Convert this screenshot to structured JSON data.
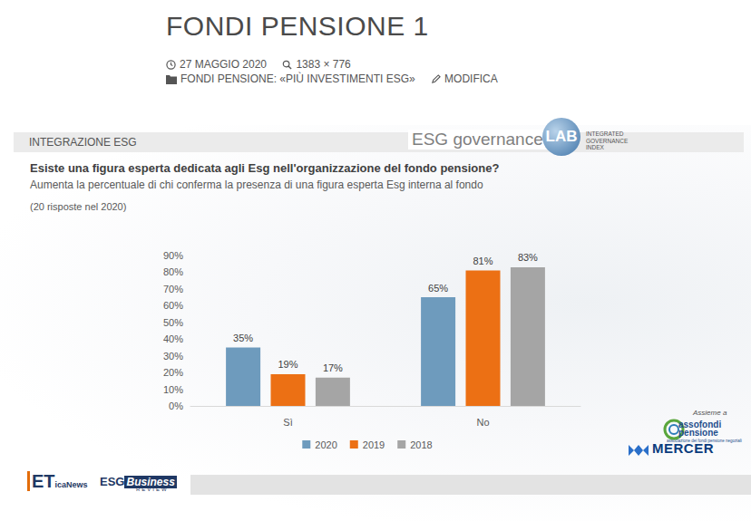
{
  "page": {
    "title": "FONDI PENSIONE 1",
    "meta": [
      "27 MAGGIO 2020",
      "1383 × 776",
      "FONDI PENSIONE: «PIÙ INVESTIMENTI ESG»",
      "MODIFICA"
    ]
  },
  "slide": {
    "section": "INTEGRAZIONE ESG",
    "lab_logo": {
      "name": "ESG governance",
      "badge": "LAB",
      "tagline": [
        "INTEGRATED",
        "GOVERNANCE",
        "INDEX"
      ]
    },
    "partners_intro": "Assieme a",
    "assofondi": {
      "name": [
        "assofondi",
        "pensione"
      ],
      "tagline": "associazione dei fondi pensione negoziali"
    },
    "mercer": "MERCER",
    "footer_logos": {
      "eticanews": "ETicaNews",
      "esg_business_review": [
        "ESG",
        "Business",
        "REVIEW"
      ]
    }
  },
  "chart_data": {
    "type": "bar",
    "title": "Esiste una figura esperta dedicata agli Esg nell'organizzazione del fondo pensione?",
    "subtitle": "Aumenta la percentuale di chi conferma la presenza di una figura esperta Esg interna al fondo",
    "note": "(20 risposte nel 2020)",
    "categories": [
      "Sì",
      "No"
    ],
    "series": [
      {
        "name": "2020",
        "color": "#6e9bbd",
        "values": [
          35,
          65
        ],
        "value_labels": [
          "35%",
          "65%"
        ]
      },
      {
        "name": "2019",
        "color": "#ec7014",
        "values": [
          19,
          81
        ],
        "value_labels": [
          "19%",
          "81%"
        ]
      },
      {
        "name": "2018",
        "color": "#a5a5a5",
        "values": [
          17,
          83
        ],
        "value_labels": [
          "17%",
          "83%"
        ]
      }
    ],
    "ylim": [
      0,
      90
    ],
    "yticks": [
      {
        "value": 0,
        "label": "0%"
      },
      {
        "value": 10,
        "label": "10%"
      },
      {
        "value": 20,
        "label": "20%"
      },
      {
        "value": 30,
        "label": "30%"
      },
      {
        "value": 40,
        "label": "40%"
      },
      {
        "value": 50,
        "label": "50%"
      },
      {
        "value": 60,
        "label": "60%"
      },
      {
        "value": 70,
        "label": "70%"
      },
      {
        "value": 80,
        "label": "80%"
      },
      {
        "value": 90,
        "label": "90%"
      }
    ],
    "grid": false,
    "legend": "bottom",
    "data_labels": true
  }
}
